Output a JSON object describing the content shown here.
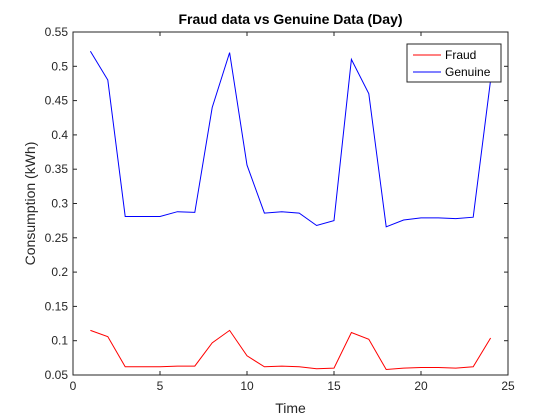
{
  "chart_data": {
    "type": "line",
    "title": "Fraud data vs Genuine Data (Day)",
    "xlabel": "Time",
    "ylabel": "Consumption (kWh)",
    "xlim": [
      0,
      25
    ],
    "ylim": [
      0.05,
      0.55
    ],
    "x_ticks": [
      0,
      5,
      10,
      15,
      20,
      25
    ],
    "y_ticks": [
      0.05,
      0.1,
      0.15,
      0.2,
      0.25,
      0.3,
      0.35,
      0.4,
      0.45,
      0.5,
      0.55
    ],
    "x_tick_labels": [
      "0",
      "5",
      "10",
      "15",
      "20",
      "25"
    ],
    "y_tick_labels": [
      "0.05",
      "0.1",
      "0.15",
      "0.2",
      "0.25",
      "0.3",
      "0.35",
      "0.4",
      "0.45",
      "0.5",
      "0.55"
    ],
    "grid": false,
    "legend_position": "top-right",
    "x": [
      1,
      2,
      3,
      4,
      5,
      6,
      7,
      8,
      9,
      10,
      11,
      12,
      13,
      14,
      15,
      16,
      17,
      18,
      19,
      20,
      21,
      22,
      23,
      24
    ],
    "series": [
      {
        "name": "Fraud",
        "color": "#ff0000",
        "values": [
          0.115,
          0.106,
          0.062,
          0.062,
          0.062,
          0.063,
          0.063,
          0.097,
          0.115,
          0.078,
          0.062,
          0.063,
          0.062,
          0.059,
          0.06,
          0.112,
          0.102,
          0.058,
          0.06,
          0.061,
          0.061,
          0.06,
          0.062,
          0.104
        ]
      },
      {
        "name": "Genuine",
        "color": "#0000ff",
        "values": [
          0.522,
          0.48,
          0.281,
          0.281,
          0.281,
          0.288,
          0.287,
          0.44,
          0.52,
          0.356,
          0.286,
          0.288,
          0.286,
          0.268,
          0.275,
          0.51,
          0.46,
          0.266,
          0.276,
          0.279,
          0.279,
          0.278,
          0.28,
          0.48
        ]
      }
    ]
  }
}
